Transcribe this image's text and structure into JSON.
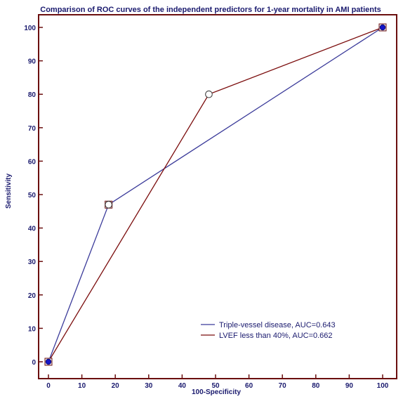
{
  "chart_data": {
    "type": "line",
    "title": "Comparison of ROC curves of the independent predictors for 1-year mortality in AMI patients",
    "xlabel": "100-Specificity",
    "ylabel": "Sensitivity",
    "xlim": [
      0,
      100
    ],
    "ylim": [
      0,
      100
    ],
    "x_ticks": [
      0,
      10,
      20,
      30,
      40,
      50,
      60,
      70,
      80,
      90,
      100
    ],
    "y_ticks": [
      0,
      10,
      20,
      30,
      40,
      50,
      60,
      70,
      80,
      90,
      100
    ],
    "x_tick_labels": [
      "0",
      "10",
      "20",
      "30",
      "40",
      "50",
      "60",
      "70",
      "80",
      "90",
      "100"
    ],
    "y_tick_labels": [
      "0",
      "10",
      "20",
      "30",
      "40",
      "50",
      "60",
      "70",
      "80",
      "90",
      "100"
    ],
    "grid": false,
    "legend_position": "bottom-right",
    "series": [
      {
        "name": "Triple-vessel disease, AUC=0.643",
        "color": "#3b3b9a",
        "points": [
          [
            0,
            0
          ],
          [
            18,
            47
          ],
          [
            100,
            100
          ]
        ]
      },
      {
        "name": "LVEF less than 40%, AUC=0.662",
        "color": "#7b0c0c",
        "points": [
          [
            0,
            0
          ],
          [
            48,
            80
          ],
          [
            100,
            100
          ]
        ]
      }
    ],
    "frame_color": "#6b0f0f",
    "marker_fill_endpoints": "#1515c8",
    "marker_fill_cutoff": "#ffffff"
  }
}
